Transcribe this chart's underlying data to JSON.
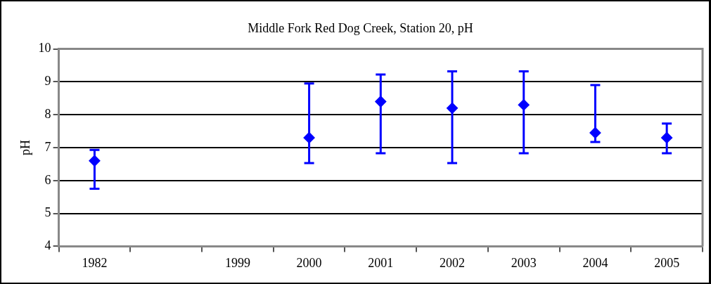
{
  "chart_data": {
    "type": "scatter",
    "title": "Middle Fork Red Dog Creek, Station 20, pH",
    "ylabel": "pH",
    "categories": [
      "1982",
      null,
      "1999",
      "2000",
      "2001",
      "2002",
      "2003",
      "2004",
      "2005"
    ],
    "values": [
      6.6,
      null,
      null,
      7.3,
      8.4,
      8.2,
      8.3,
      7.45,
      7.3
    ],
    "errors": [
      [
        5.75,
        6.93
      ],
      null,
      null,
      [
        6.53,
        8.95
      ],
      [
        6.83,
        9.22
      ],
      [
        6.53,
        9.32
      ],
      [
        6.83,
        9.32
      ],
      [
        7.17,
        8.9
      ],
      [
        6.83,
        7.73
      ]
    ],
    "color": "#0000ff",
    "marker": "diamond",
    "ylim": [
      4,
      10
    ],
    "yticks": [
      4,
      5,
      6,
      7,
      8,
      9,
      10
    ],
    "grid": "y",
    "legend": false
  }
}
